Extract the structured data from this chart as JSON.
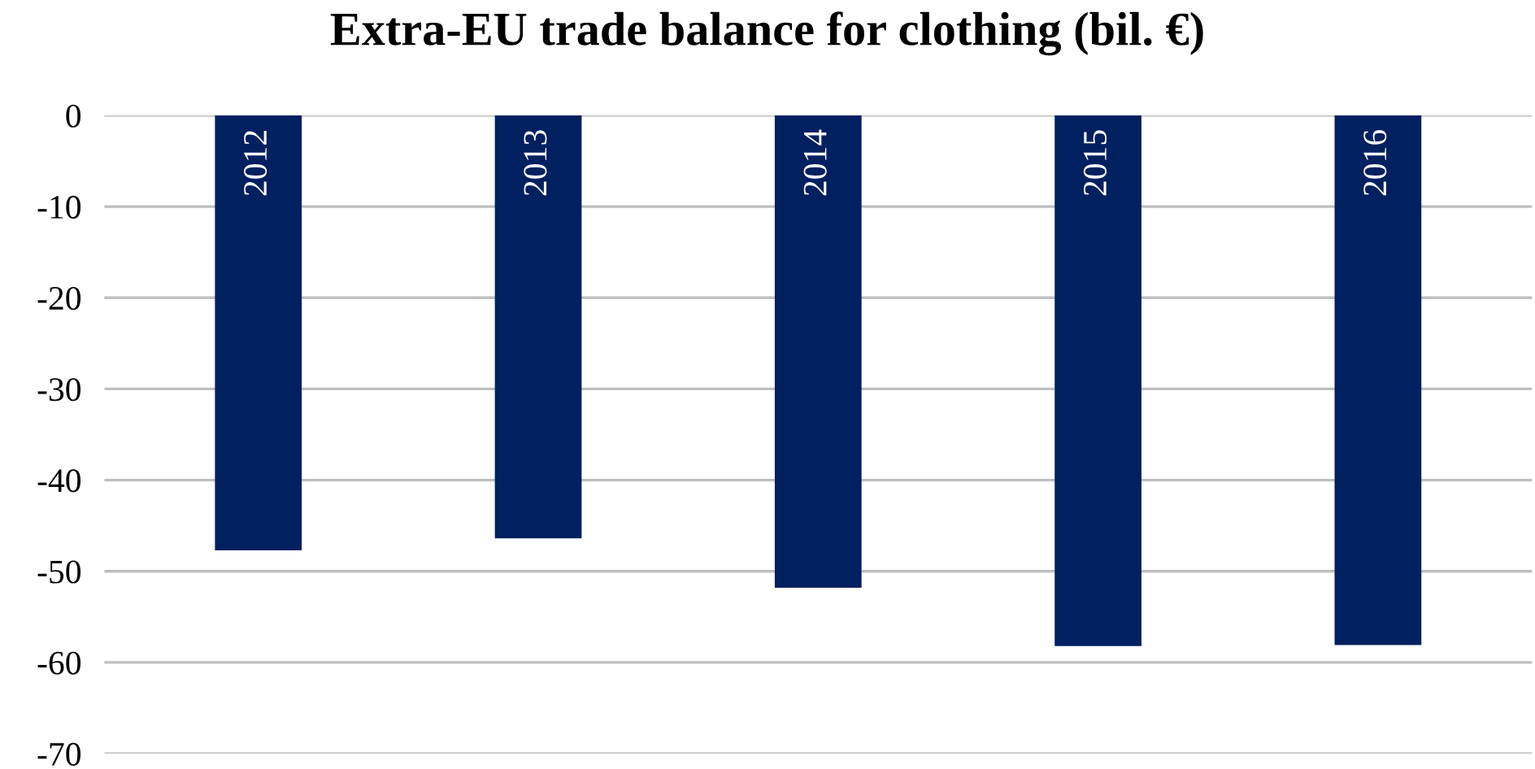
{
  "chart_data": {
    "type": "bar",
    "title": "Extra-EU trade balance for clothing (bil. €)",
    "categories": [
      "2012",
      "2013",
      "2014",
      "2015",
      "2016"
    ],
    "values": [
      -47.7,
      -46.4,
      -51.8,
      -58.2,
      -58.1
    ],
    "color": "#002060",
    "ylim": [
      -70,
      0
    ],
    "yticks": [
      -70,
      -60,
      -50,
      -40,
      -30,
      -20,
      -10,
      0
    ],
    "grid": "y"
  }
}
